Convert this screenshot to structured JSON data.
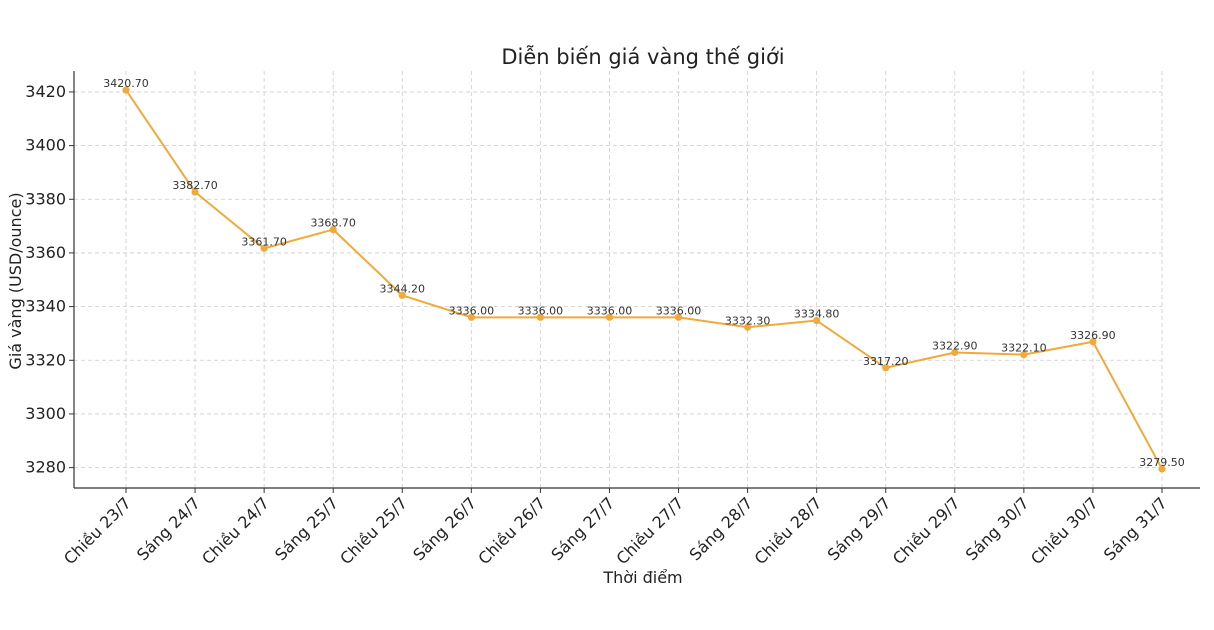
{
  "chart_data": {
    "type": "line",
    "title": "Diễn biến giá vàng thế giới",
    "xlabel": "Thời điểm",
    "ylabel": "Giá vàng (USD/ounce)",
    "categories": [
      "Chiều 23/7",
      "Sáng 24/7",
      "Chiều 24/7",
      "Sáng 25/7",
      "Chiều 25/7",
      "Sáng 26/7",
      "Chiều 26/7",
      "Sáng 27/7",
      "Chiều 27/7",
      "Sáng 28/7",
      "Chiều 28/7",
      "Sáng 29/7",
      "Chiều 29/7",
      "Sáng 30/7",
      "Chiều 30/7",
      "Sáng 31/7"
    ],
    "series": [
      {
        "name": "",
        "values": [
          3420.7,
          3382.7,
          3361.7,
          3368.7,
          3344.2,
          3336.0,
          3336.0,
          3336.0,
          3336.0,
          3332.3,
          3334.8,
          3317.2,
          3322.9,
          3322.1,
          3326.9,
          3279.5
        ],
        "labels": [
          "3420.70",
          "3382.70",
          "3361.70",
          "3368.70",
          "3344.20",
          "3336.00",
          "3336.00",
          "3336.00",
          "3336.00",
          "3332.30",
          "3334.80",
          "3317.20",
          "3322.90",
          "3322.10",
          "3326.90",
          "3279.50"
        ],
        "color": "#F2A93B"
      }
    ],
    "yticks": [
      3280,
      3300,
      3320,
      3340,
      3360,
      3380,
      3400,
      3420
    ],
    "ylim": [
      3272.4,
      3427.8
    ],
    "grid": true,
    "legend": "none"
  }
}
